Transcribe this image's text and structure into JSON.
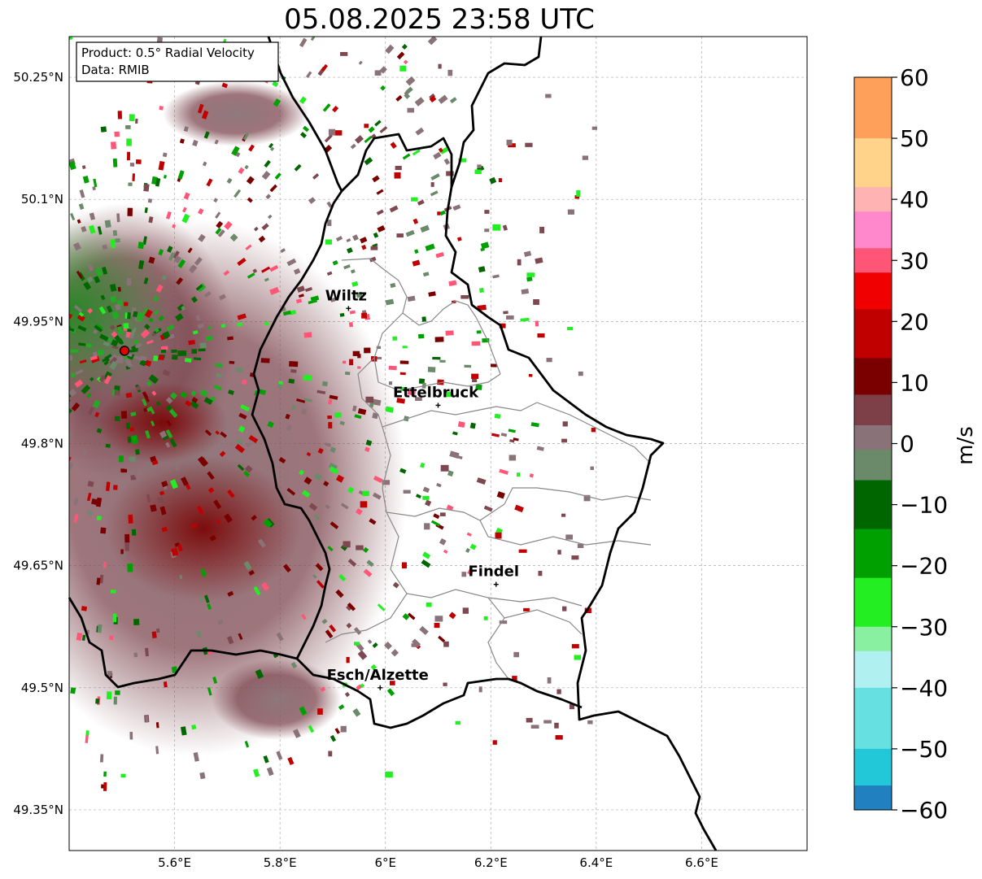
{
  "title": "05.08.2025 23:58 UTC",
  "info_box": {
    "line1": "Product: 0.5° Radial Velocity",
    "line2": "Data: RMIB"
  },
  "map": {
    "lon_range": [
      5.4,
      6.8
    ],
    "lat_range": [
      49.3,
      50.3
    ],
    "lat_ticks": [
      {
        "value": 50.25,
        "label": "50.25°N"
      },
      {
        "value": 50.1,
        "label": "50.1°N"
      },
      {
        "value": 49.95,
        "label": "49.95°N"
      },
      {
        "value": 49.8,
        "label": "49.8°N"
      },
      {
        "value": 49.65,
        "label": "49.65°N"
      },
      {
        "value": 49.5,
        "label": "49.5°N"
      },
      {
        "value": 49.35,
        "label": "49.35°N"
      }
    ],
    "lon_ticks": [
      {
        "value": 5.6,
        "label": "5.6°E"
      },
      {
        "value": 5.8,
        "label": "5.8°E"
      },
      {
        "value": 6.0,
        "label": "6°E"
      },
      {
        "value": 6.2,
        "label": "6.2°E"
      },
      {
        "value": 6.4,
        "label": "6.4°E"
      },
      {
        "value": 6.6,
        "label": "6.6°E"
      }
    ],
    "radar_site": {
      "lon": 5.505,
      "lat": 49.914
    },
    "cities": [
      {
        "name": "Wiltz",
        "lon": 5.93,
        "lat": 49.966
      },
      {
        "name": "Ettelbruck",
        "lon": 6.1,
        "lat": 49.847
      },
      {
        "name": "Findel",
        "lon": 6.21,
        "lat": 49.627
      },
      {
        "name": "Esch/Alzette",
        "lon": 5.99,
        "lat": 49.5
      }
    ],
    "border_color": "#000000",
    "district_color": "#888888"
  },
  "colorbar": {
    "label": "m/s",
    "min": -60,
    "max": 60,
    "ticks": [
      {
        "value": 60,
        "label": "60"
      },
      {
        "value": 50,
        "label": "50"
      },
      {
        "value": 40,
        "label": "40"
      },
      {
        "value": 30,
        "label": "30"
      },
      {
        "value": 20,
        "label": "20"
      },
      {
        "value": 10,
        "label": "10"
      },
      {
        "value": 0,
        "label": "0"
      },
      {
        "value": -10,
        "label": "−10"
      },
      {
        "value": -20,
        "label": "−20"
      },
      {
        "value": -30,
        "label": "−30"
      },
      {
        "value": -40,
        "label": "−40"
      },
      {
        "value": -50,
        "label": "−50"
      },
      {
        "value": -60,
        "label": "−60"
      }
    ],
    "stops": [
      {
        "from": 50,
        "to": 60,
        "color": "#ffa05a"
      },
      {
        "from": 42,
        "to": 50,
        "color": "#ffd38a"
      },
      {
        "from": 38,
        "to": 42,
        "color": "#ffb3b3"
      },
      {
        "from": 32,
        "to": 38,
        "color": "#ff88cc"
      },
      {
        "from": 28,
        "to": 32,
        "color": "#ff5577"
      },
      {
        "from": 22,
        "to": 28,
        "color": "#f00000"
      },
      {
        "from": 14,
        "to": 22,
        "color": "#c00000"
      },
      {
        "from": 8,
        "to": 14,
        "color": "#7a0000"
      },
      {
        "from": 3,
        "to": 8,
        "color": "#7d4048"
      },
      {
        "from": -1,
        "to": 3,
        "color": "#8a7378"
      },
      {
        "from": -6,
        "to": -1,
        "color": "#6a8a6a"
      },
      {
        "from": -14,
        "to": -6,
        "color": "#006600"
      },
      {
        "from": -22,
        "to": -14,
        "color": "#00a000"
      },
      {
        "from": -30,
        "to": -22,
        "color": "#22ee22"
      },
      {
        "from": -34,
        "to": -30,
        "color": "#88f0a0"
      },
      {
        "from": -40,
        "to": -34,
        "color": "#b0f0f0"
      },
      {
        "from": -50,
        "to": -40,
        "color": "#66e0e0"
      },
      {
        "from": -56,
        "to": -50,
        "color": "#22c8d8"
      },
      {
        "from": -60,
        "to": -56,
        "color": "#2080c0"
      }
    ]
  }
}
